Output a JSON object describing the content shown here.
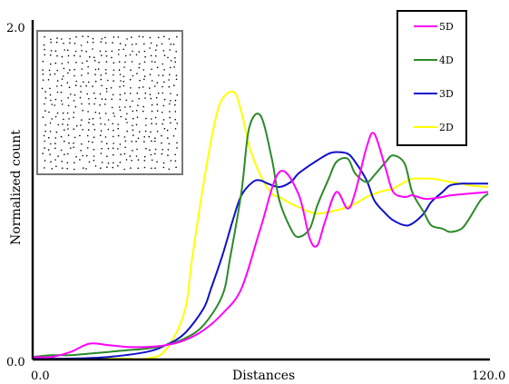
{
  "chart_data": {
    "type": "line",
    "xlabel": "Distances",
    "ylabel": "Normalized count",
    "xlim": [
      0.0,
      120.0
    ],
    "ylim": [
      0.0,
      2.0
    ],
    "x_tick_labels": [
      "0.0",
      "120.0"
    ],
    "y_tick_labels": [
      "0.0",
      "2.0"
    ],
    "grid": false,
    "legend_position": "top-right",
    "inset": "random point pattern (square sample)",
    "series": [
      {
        "name": "5D",
        "color": "#ff00ff",
        "x": [
          0,
          5,
          10,
          15,
          20,
          25,
          30,
          35,
          40,
          45,
          50,
          55,
          60,
          65,
          70,
          73,
          75,
          77,
          80,
          83,
          85,
          88,
          90,
          93,
          95,
          98,
          100,
          103,
          105,
          108,
          110,
          115,
          120
        ],
        "y": [
          0.01,
          0.01,
          0.04,
          0.09,
          0.08,
          0.07,
          0.07,
          0.08,
          0.11,
          0.17,
          0.27,
          0.42,
          0.78,
          1.12,
          0.99,
          0.72,
          0.68,
          0.82,
          1.0,
          0.9,
          1.0,
          1.27,
          1.35,
          1.14,
          1.0,
          0.97,
          0.98,
          0.96,
          0.96,
          0.97,
          0.98,
          0.99,
          1.0
        ]
      },
      {
        "name": "4D",
        "color": "#2a8a2a",
        "x": [
          0,
          5,
          10,
          15,
          20,
          25,
          30,
          35,
          40,
          45,
          50,
          52,
          55,
          57,
          60,
          63,
          65,
          68,
          70,
          73,
          75,
          78,
          80,
          83,
          85,
          88,
          90,
          93,
          95,
          98,
          100,
          103,
          105,
          108,
          110,
          113,
          115,
          118,
          120
        ],
        "y": [
          0.01,
          0.02,
          0.02,
          0.03,
          0.04,
          0.05,
          0.06,
          0.08,
          0.12,
          0.2,
          0.38,
          0.6,
          1.0,
          1.38,
          1.46,
          1.2,
          0.95,
          0.78,
          0.73,
          0.78,
          0.92,
          1.08,
          1.18,
          1.2,
          1.11,
          1.06,
          1.1,
          1.18,
          1.22,
          1.17,
          1.0,
          0.88,
          0.8,
          0.78,
          0.76,
          0.78,
          0.84,
          0.95,
          0.99
        ]
      },
      {
        "name": "3D",
        "color": "#1010cc",
        "x": [
          0,
          10,
          20,
          30,
          35,
          40,
          45,
          47,
          50,
          53,
          55,
          58,
          60,
          62,
          65,
          68,
          70,
          73,
          75,
          78,
          80,
          83,
          85,
          88,
          90,
          93,
          95,
          98,
          100,
          103,
          105,
          108,
          110,
          113,
          115,
          120
        ],
        "y": [
          0.0,
          0.0,
          0.01,
          0.04,
          0.08,
          0.15,
          0.3,
          0.42,
          0.62,
          0.85,
          0.98,
          1.06,
          1.07,
          1.05,
          1.03,
          1.06,
          1.11,
          1.16,
          1.19,
          1.23,
          1.24,
          1.23,
          1.18,
          1.07,
          0.95,
          0.87,
          0.83,
          0.8,
          0.81,
          0.87,
          0.94,
          1.0,
          1.04,
          1.05,
          1.05,
          1.05
        ]
      },
      {
        "name": "2D",
        "color": "#ffff00",
        "x": [
          0,
          10,
          20,
          25,
          30,
          35,
          40,
          42,
          45,
          48,
          50,
          53,
          55,
          57,
          60,
          63,
          65,
          68,
          70,
          73,
          75,
          78,
          80,
          83,
          85,
          88,
          90,
          93,
          95,
          98,
          100,
          103,
          105,
          108,
          110,
          113,
          115,
          120
        ],
        "y": [
          0.0,
          0.0,
          0.0,
          0.0,
          0.0,
          0.05,
          0.28,
          0.6,
          1.05,
          1.42,
          1.56,
          1.6,
          1.48,
          1.28,
          1.1,
          0.99,
          0.97,
          0.93,
          0.91,
          0.88,
          0.87,
          0.88,
          0.89,
          0.91,
          0.93,
          0.97,
          0.99,
          1.01,
          1.02,
          1.06,
          1.08,
          1.08,
          1.08,
          1.07,
          1.06,
          1.05,
          1.04,
          1.03
        ]
      }
    ]
  }
}
